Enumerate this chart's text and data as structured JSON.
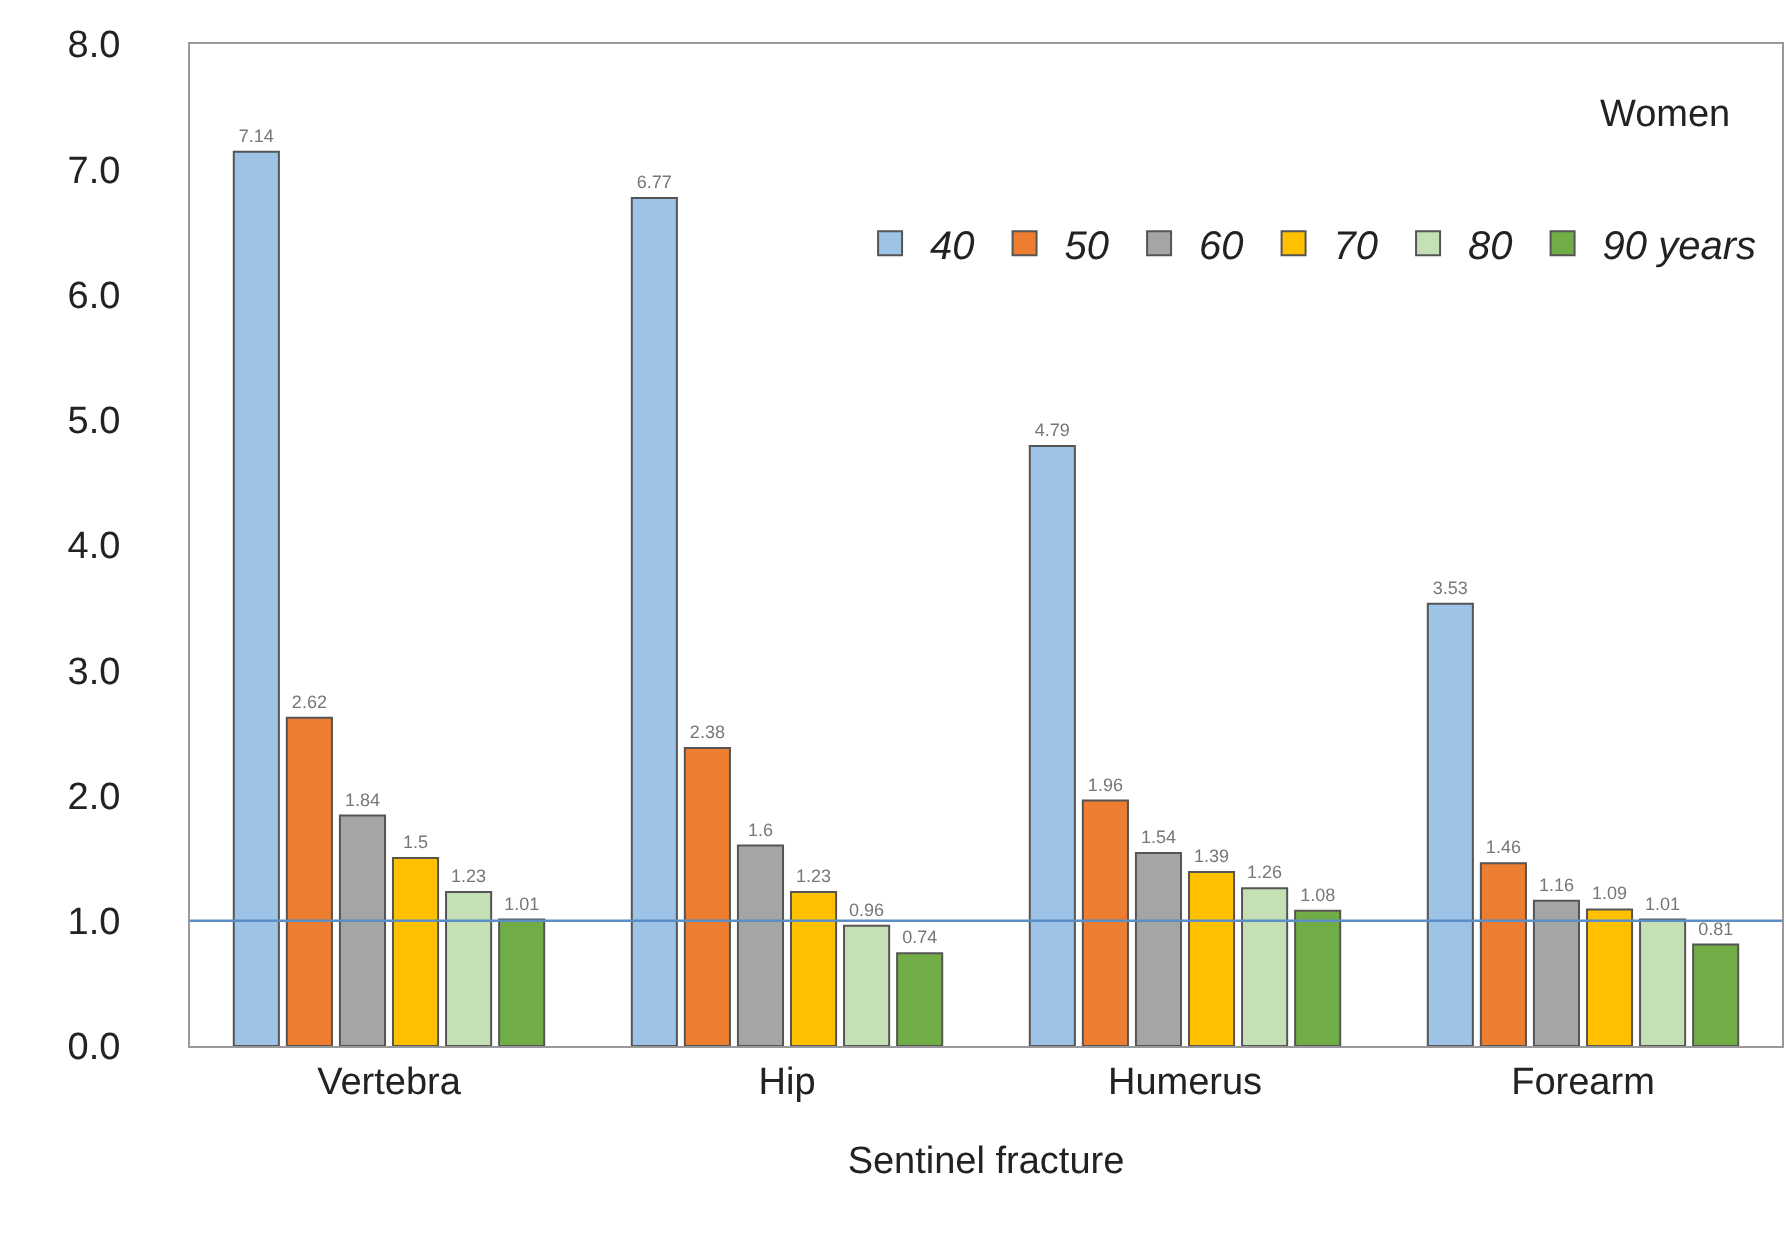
{
  "chart_data": {
    "type": "bar",
    "xlabel": "Sentinel fracture",
    "categories": [
      "Vertebra",
      "Hip",
      "Humerus",
      "Forearm"
    ],
    "series": [
      {
        "name": "40",
        "color": "#9dc3e6",
        "values": [
          7.14,
          6.77,
          4.79,
          3.53
        ]
      },
      {
        "name": "50",
        "color": "#ed7d31",
        "values": [
          2.62,
          2.38,
          1.96,
          1.46
        ]
      },
      {
        "name": "60",
        "color": "#a5a5a5",
        "values": [
          1.84,
          1.6,
          1.54,
          1.16
        ]
      },
      {
        "name": "70",
        "color": "#ffc000",
        "values": [
          1.5,
          1.23,
          1.39,
          1.09
        ]
      },
      {
        "name": "80",
        "color": "#c5e0b4",
        "values": [
          1.23,
          0.96,
          1.26,
          1.01
        ]
      },
      {
        "name": "90 years",
        "color": "#70ad47",
        "values": [
          1.01,
          0.74,
          1.08,
          0.81
        ]
      }
    ],
    "ylim": [
      0,
      8
    ],
    "yticks": [
      {
        "value": 0,
        "label": "0.0"
      },
      {
        "value": 1,
        "label": "1.0"
      },
      {
        "value": 2,
        "label": "2.0"
      },
      {
        "value": 3,
        "label": "3.0"
      },
      {
        "value": 4,
        "label": "4.0"
      },
      {
        "value": 5,
        "label": "5.0"
      },
      {
        "value": 6,
        "label": "6.0"
      },
      {
        "value": 7,
        "label": "7.0"
      },
      {
        "value": 8,
        "label": "8.0"
      }
    ],
    "ref_lines": [
      {
        "axis": "y",
        "value": 1,
        "color": "#5b8ec4"
      }
    ],
    "annotations": [
      "Women"
    ],
    "data_labels": true,
    "grid": false,
    "legend": "top right"
  }
}
